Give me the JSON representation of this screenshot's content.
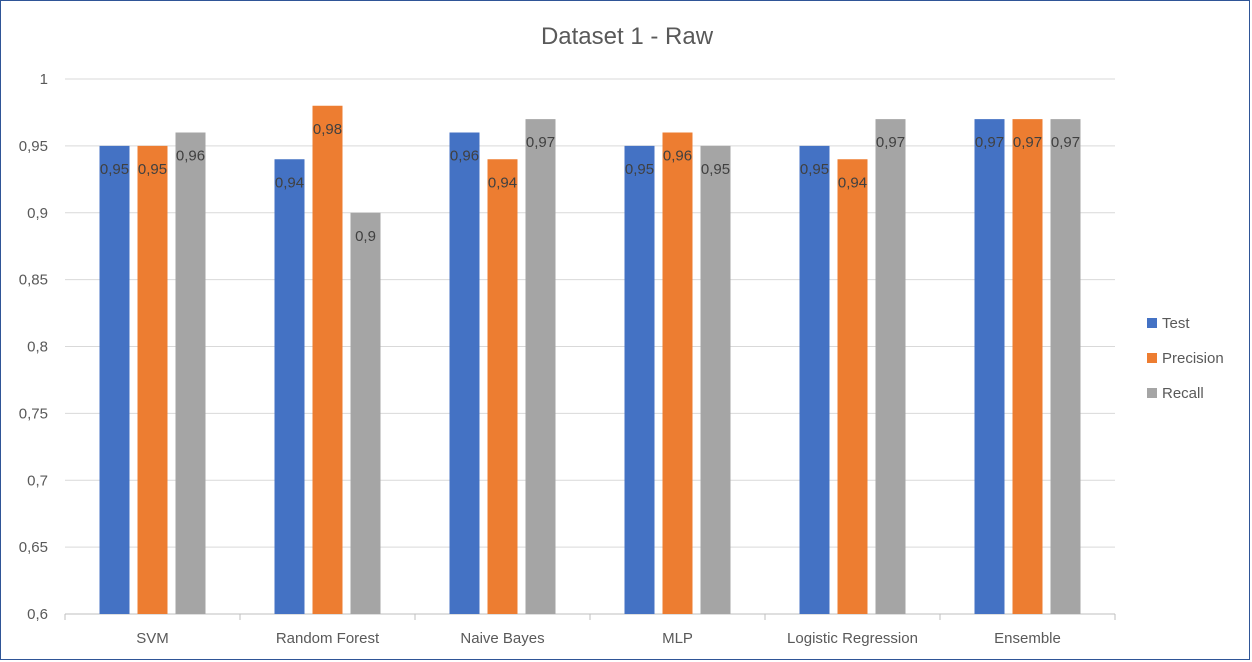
{
  "chart_data": {
    "type": "bar",
    "title": "Dataset 1 - Raw",
    "xlabel": "",
    "ylabel": "",
    "categories": [
      "SVM",
      "Random Forest",
      "Naive Bayes",
      "MLP",
      "Logistic Regression",
      "Ensemble"
    ],
    "series": [
      {
        "name": "Test",
        "color": "#4472c4",
        "values": [
          0.95,
          0.94,
          0.96,
          0.95,
          0.95,
          0.97
        ]
      },
      {
        "name": "Precision",
        "color": "#ed7d31",
        "values": [
          0.95,
          0.98,
          0.94,
          0.96,
          0.94,
          0.97
        ]
      },
      {
        "name": "Recall",
        "color": "#a5a5a5",
        "values": [
          0.96,
          0.9,
          0.97,
          0.95,
          0.97,
          0.97
        ]
      }
    ],
    "ylim": [
      0.6,
      1
    ],
    "yticks": [
      "0,6",
      "0,65",
      "0,7",
      "0,75",
      "0,8",
      "0,85",
      "0,9",
      "0,95",
      "1"
    ],
    "data_labels": [
      [
        "0,95",
        "0,94",
        "0,96",
        "0,95",
        "0,95",
        "0,97"
      ],
      [
        "0,95",
        "0,98",
        "0,94",
        "0,96",
        "0,94",
        "0,97"
      ],
      [
        "0,96",
        "0,9",
        "0,97",
        "0,95",
        "0,97",
        "0,97"
      ]
    ],
    "grid": true,
    "legend": "right"
  }
}
